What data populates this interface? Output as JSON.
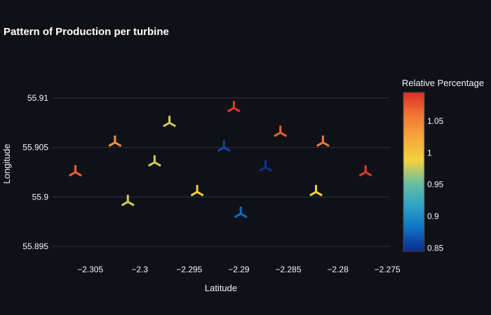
{
  "chart_data": {
    "type": "scatter",
    "title": "Pattern of Production per turbine",
    "xlabel": "Latitude",
    "ylabel": "Longitude",
    "xlim": [
      -2.3088,
      -2.2748
    ],
    "ylim": [
      55.894,
      55.9105
    ],
    "x_ticks": [
      -2.305,
      -2.3,
      -2.295,
      -2.29,
      -2.285,
      -2.28,
      -2.275
    ],
    "x_tick_labels": [
      "−2.305",
      "−2.3",
      "−2.295",
      "−2.29",
      "−2.285",
      "−2.28",
      "−2.275"
    ],
    "y_ticks": [
      55.895,
      55.9,
      55.905,
      55.91
    ],
    "y_tick_labels": [
      "55.895",
      "55.9",
      "55.905",
      "55.91"
    ],
    "marker": "y-down",
    "grid": true,
    "colorbar": {
      "title": "Relative Percentage",
      "range": [
        0.845,
        1.095
      ],
      "ticks": [
        0.85,
        0.9,
        0.95,
        1,
        1.05
      ],
      "tick_labels": [
        "0.85",
        "0.9",
        "0.95",
        "1",
        "1.05"
      ],
      "colorscale": [
        "#0d2a8c",
        "#0f6fc6",
        "#2ea3c7",
        "#68c0a0",
        "#f4d13f",
        "#f6a83a",
        "#ef7735",
        "#de2f28"
      ]
    },
    "points": [
      {
        "x": -2.3065,
        "y": 55.9025,
        "value": 1.07
      },
      {
        "x": -2.3025,
        "y": 55.9055,
        "value": 1.04
      },
      {
        "x": -2.3012,
        "y": 55.8995,
        "value": 0.98
      },
      {
        "x": -2.2985,
        "y": 55.9035,
        "value": 0.98
      },
      {
        "x": -2.297,
        "y": 55.9075,
        "value": 0.98
      },
      {
        "x": -2.2942,
        "y": 55.9005,
        "value": 0.99
      },
      {
        "x": -2.2915,
        "y": 55.905,
        "value": 0.86
      },
      {
        "x": -2.2905,
        "y": 55.909,
        "value": 1.09
      },
      {
        "x": -2.2898,
        "y": 55.8983,
        "value": 0.88
      },
      {
        "x": -2.2873,
        "y": 55.903,
        "value": 0.85
      },
      {
        "x": -2.2858,
        "y": 55.9065,
        "value": 1.07
      },
      {
        "x": -2.2822,
        "y": 55.9005,
        "value": 0.99
      },
      {
        "x": -2.2815,
        "y": 55.9055,
        "value": 1.06
      },
      {
        "x": -2.2772,
        "y": 55.9025,
        "value": 1.09
      }
    ]
  }
}
